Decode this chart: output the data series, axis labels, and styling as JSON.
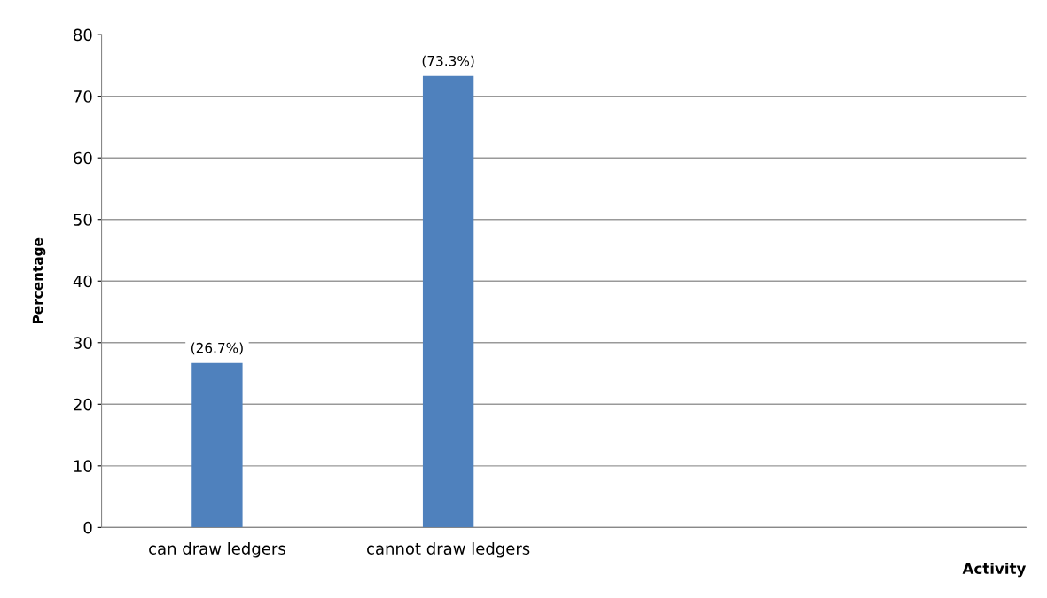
{
  "chart_data": {
    "type": "bar",
    "categories": [
      "can draw ledgers",
      "cannot draw ledgers",
      null,
      null
    ],
    "values": [
      26.7,
      73.3,
      null,
      null
    ],
    "value_labels": [
      "(26.7%)",
      "(73.3%)",
      null,
      null
    ],
    "color": "#4f81bd",
    "xlabel": "Activity",
    "ylabel": "Percentage",
    "ylim": [
      0,
      80
    ],
    "yticks": [
      0,
      10,
      20,
      30,
      40,
      50,
      60,
      70,
      80
    ],
    "grid": "y"
  }
}
